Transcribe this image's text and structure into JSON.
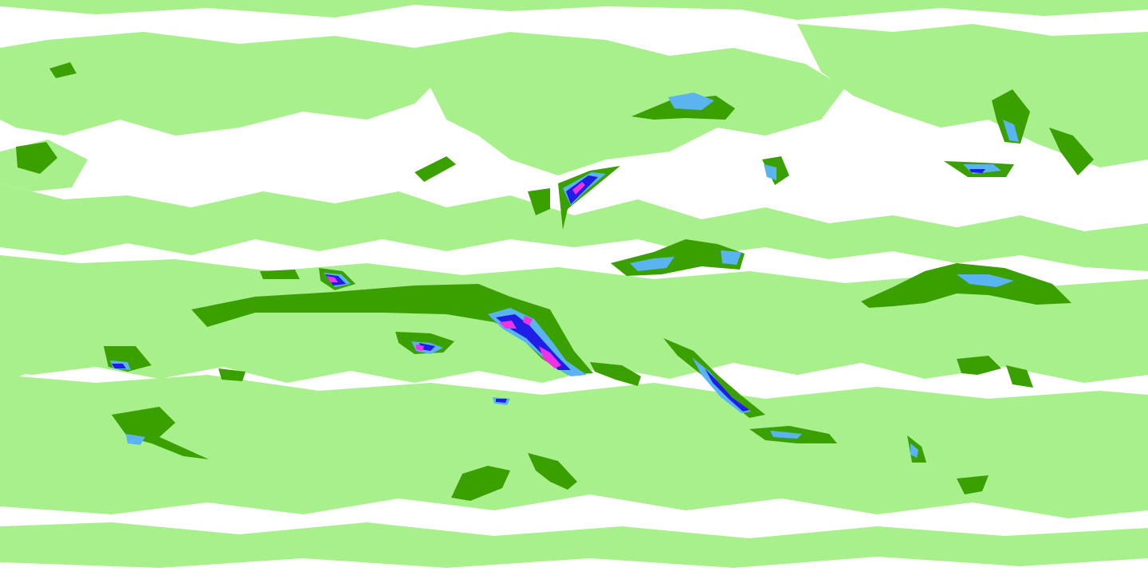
{
  "map": {
    "projection": "equirectangular",
    "background_color": "#ffffff",
    "contour_levels": [
      {
        "level": 1,
        "color": "#a8f08c",
        "meaning": "light"
      },
      {
        "level": 2,
        "color": "#3aa000",
        "meaning": "moderate"
      },
      {
        "level": 3,
        "color": "#5ab4f0",
        "meaning": "heavy"
      },
      {
        "level": 4,
        "color": "#1e1ee6",
        "meaning": "very heavy"
      },
      {
        "level": 5,
        "color": "#f032e6",
        "meaning": "extreme"
      }
    ],
    "legend_visible": false,
    "labels_visible": false
  }
}
